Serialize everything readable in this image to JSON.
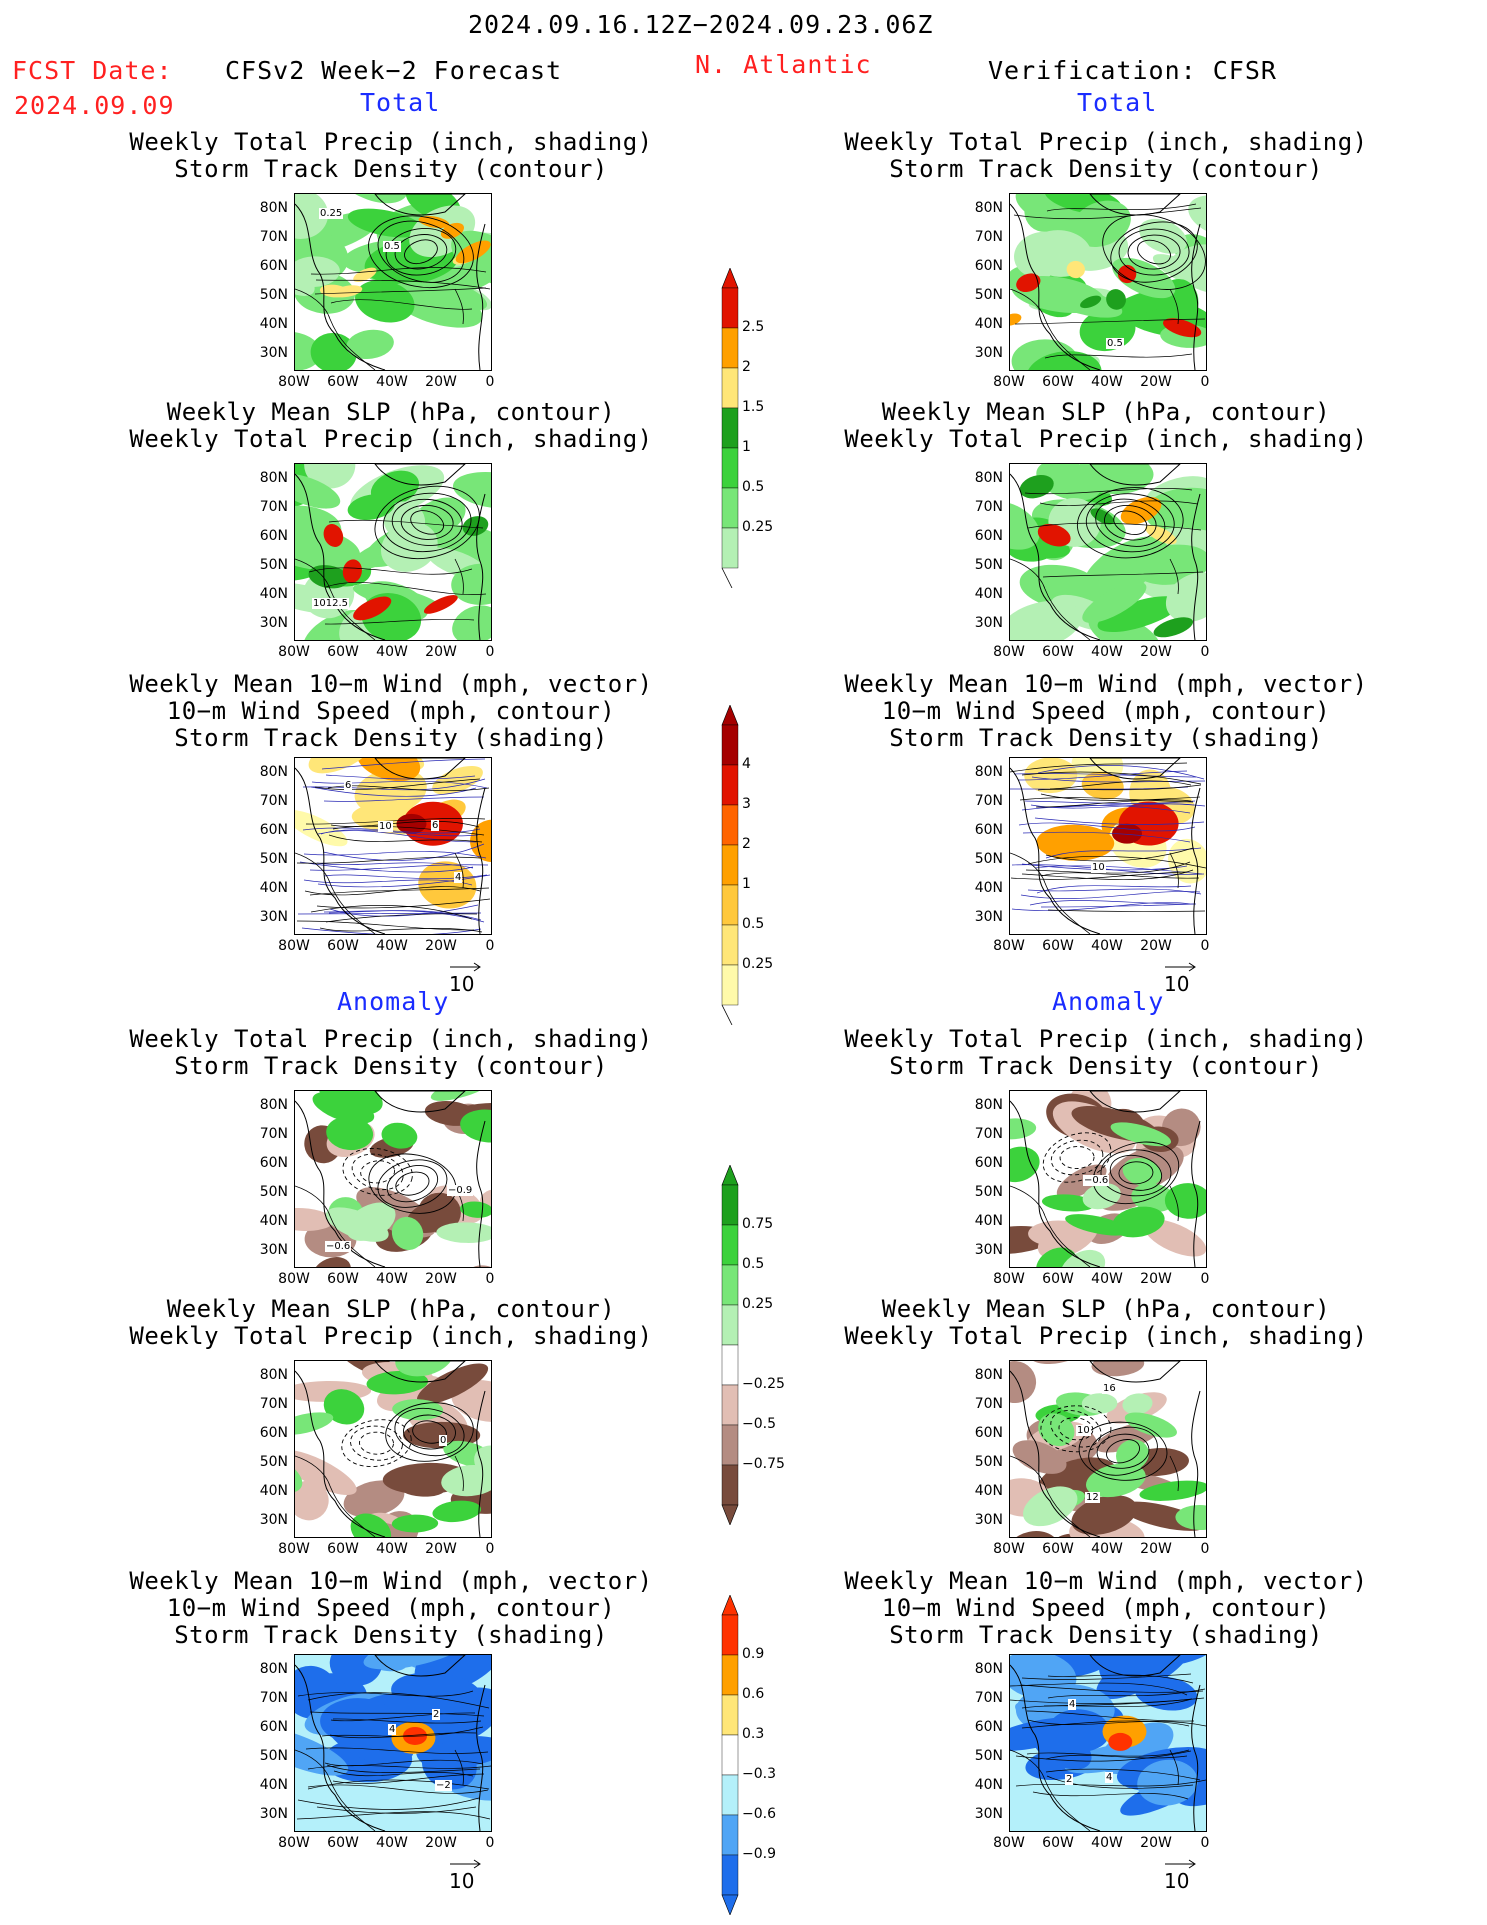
{
  "header": {
    "date_range": "2024.09.16.12Z−2024.09.23.06Z",
    "fcst_label": "FCST Date:",
    "fcst_date": "2024.09.09",
    "left_title": "CFSv2 Week−2 Forecast",
    "region": "N. Atlantic",
    "right_title": "Verification: CFSR"
  },
  "sections": {
    "total": "Total",
    "anomaly": "Anomaly"
  },
  "panel_titles": {
    "precip_track": [
      "Weekly Total Precip (inch, shading)",
      "Storm Track Density (contour)"
    ],
    "slp_precip": [
      "Weekly Mean SLP (hPa, contour)",
      "Weekly Total Precip (inch, shading)"
    ],
    "wind_track": [
      "Weekly Mean 10−m Wind (mph, vector)",
      "10−m Wind Speed (mph, contour)",
      "Storm Track Density (shading)"
    ]
  },
  "axes": {
    "lat_labels": [
      "80N",
      "70N",
      "60N",
      "50N",
      "40N",
      "30N"
    ],
    "lon_labels": [
      "80W",
      "60W",
      "40W",
      "20W",
      "0"
    ]
  },
  "vector_ref": "10",
  "colorbars": {
    "precip_total": [
      "2.5",
      "2",
      "1.5",
      "1",
      "0.5",
      "0.25"
    ],
    "track_total": [
      "4",
      "3",
      "2",
      "1",
      "0.5",
      "0.25"
    ],
    "precip_anom": [
      "0.75",
      "0.5",
      "0.25",
      "−0.25",
      "−0.5",
      "−0.75"
    ],
    "track_anom": [
      "0.9",
      "0.6",
      "0.3",
      "−0.3",
      "−0.6",
      "−0.9"
    ]
  },
  "contour_labels": {
    "fcst_precip_total": [
      "0.25",
      "0.5"
    ],
    "obs_precip_total": [
      "0.5"
    ],
    "fcst_slp_total": [
      "1012.5"
    ],
    "fcst_wind_total": [
      "4",
      "6",
      "10",
      "6"
    ],
    "obs_wind_total": [
      "10"
    ],
    "fcst_precip_anom": [
      "−0.9",
      "−0.6"
    ],
    "obs_precip_anom": [
      "−0.6"
    ],
    "fcst_slp_anom": [
      "0"
    ],
    "obs_slp_anom": [
      "10",
      "12",
      "16"
    ],
    "fcst_wind_anom": [
      "2",
      "−2",
      "4"
    ],
    "obs_wind_anom": [
      "4",
      "2",
      "4"
    ]
  },
  "colors": {
    "header_red": "#ff2020",
    "section_blue": "#1a2cff",
    "precip": [
      "#b4f0b4",
      "#78e678",
      "#3cd23c",
      "#1ea01e",
      "#ffe678",
      "#ffa000",
      "#e11400"
    ],
    "track_total": [
      "#fffaaa",
      "#ffe678",
      "#ffc83c",
      "#ffa000",
      "#ff6400",
      "#e11400",
      "#a50000"
    ],
    "precip_anom": [
      "#fa3c3c"
    ],
    "dry_anom": [
      "#e1beb4",
      "#b48c82",
      "#784b3c"
    ],
    "track_anom_neg": [
      "#b4f0fa",
      "#50a5f5",
      "#1e6eeb"
    ],
    "track_anom_pos": [
      "#ffe678",
      "#ffa000",
      "#ff3200"
    ]
  }
}
